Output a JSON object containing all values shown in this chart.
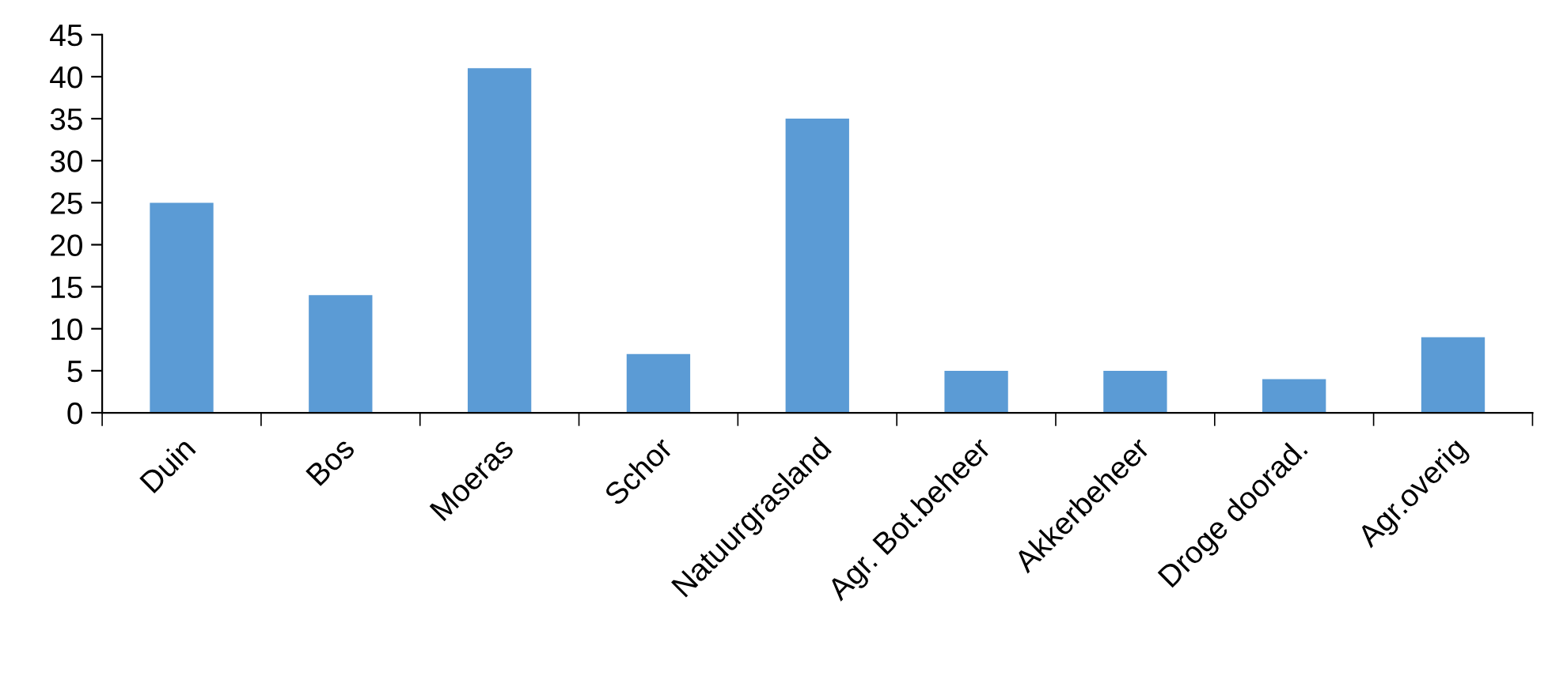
{
  "chart_data": {
    "type": "bar",
    "categories": [
      "Duin",
      "Bos",
      "Moeras",
      "Schor",
      "Natuurgrasland",
      "Agr. Bot.beheer",
      "Akkerbeheer",
      "Droge doorad.",
      "Agr.overig"
    ],
    "values": [
      25,
      14,
      41,
      7,
      35,
      5,
      5,
      4,
      9
    ],
    "color": "#5b9bd5",
    "ylim": [
      0,
      45
    ],
    "yticks": [
      0,
      5,
      10,
      15,
      20,
      25,
      30,
      35,
      40,
      45
    ],
    "grid": false,
    "legend": false
  }
}
